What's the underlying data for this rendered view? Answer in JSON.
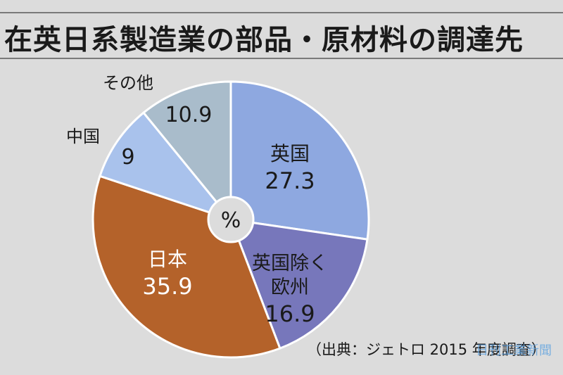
{
  "header": {
    "title": "在英日系製造業の部品・原材料の調達先"
  },
  "chart_data": {
    "type": "pie",
    "unit_label": "%",
    "slices": [
      {
        "label": "英国",
        "value": 27.3,
        "color": "#8ea8e0"
      },
      {
        "label": "英国除く欧州",
        "value": 16.9,
        "color": "#7777bb"
      },
      {
        "label": "日本",
        "value": 35.9,
        "color": "#b4622a"
      },
      {
        "label": "中国",
        "value": 9,
        "color": "#a9c2ec"
      },
      {
        "label": "その他",
        "value": 10.9,
        "color": "#a9bccb"
      }
    ]
  },
  "footer": {
    "source": "（出典：ジェトロ 2015 年度調査）",
    "watermark": "日刊工業新聞"
  }
}
